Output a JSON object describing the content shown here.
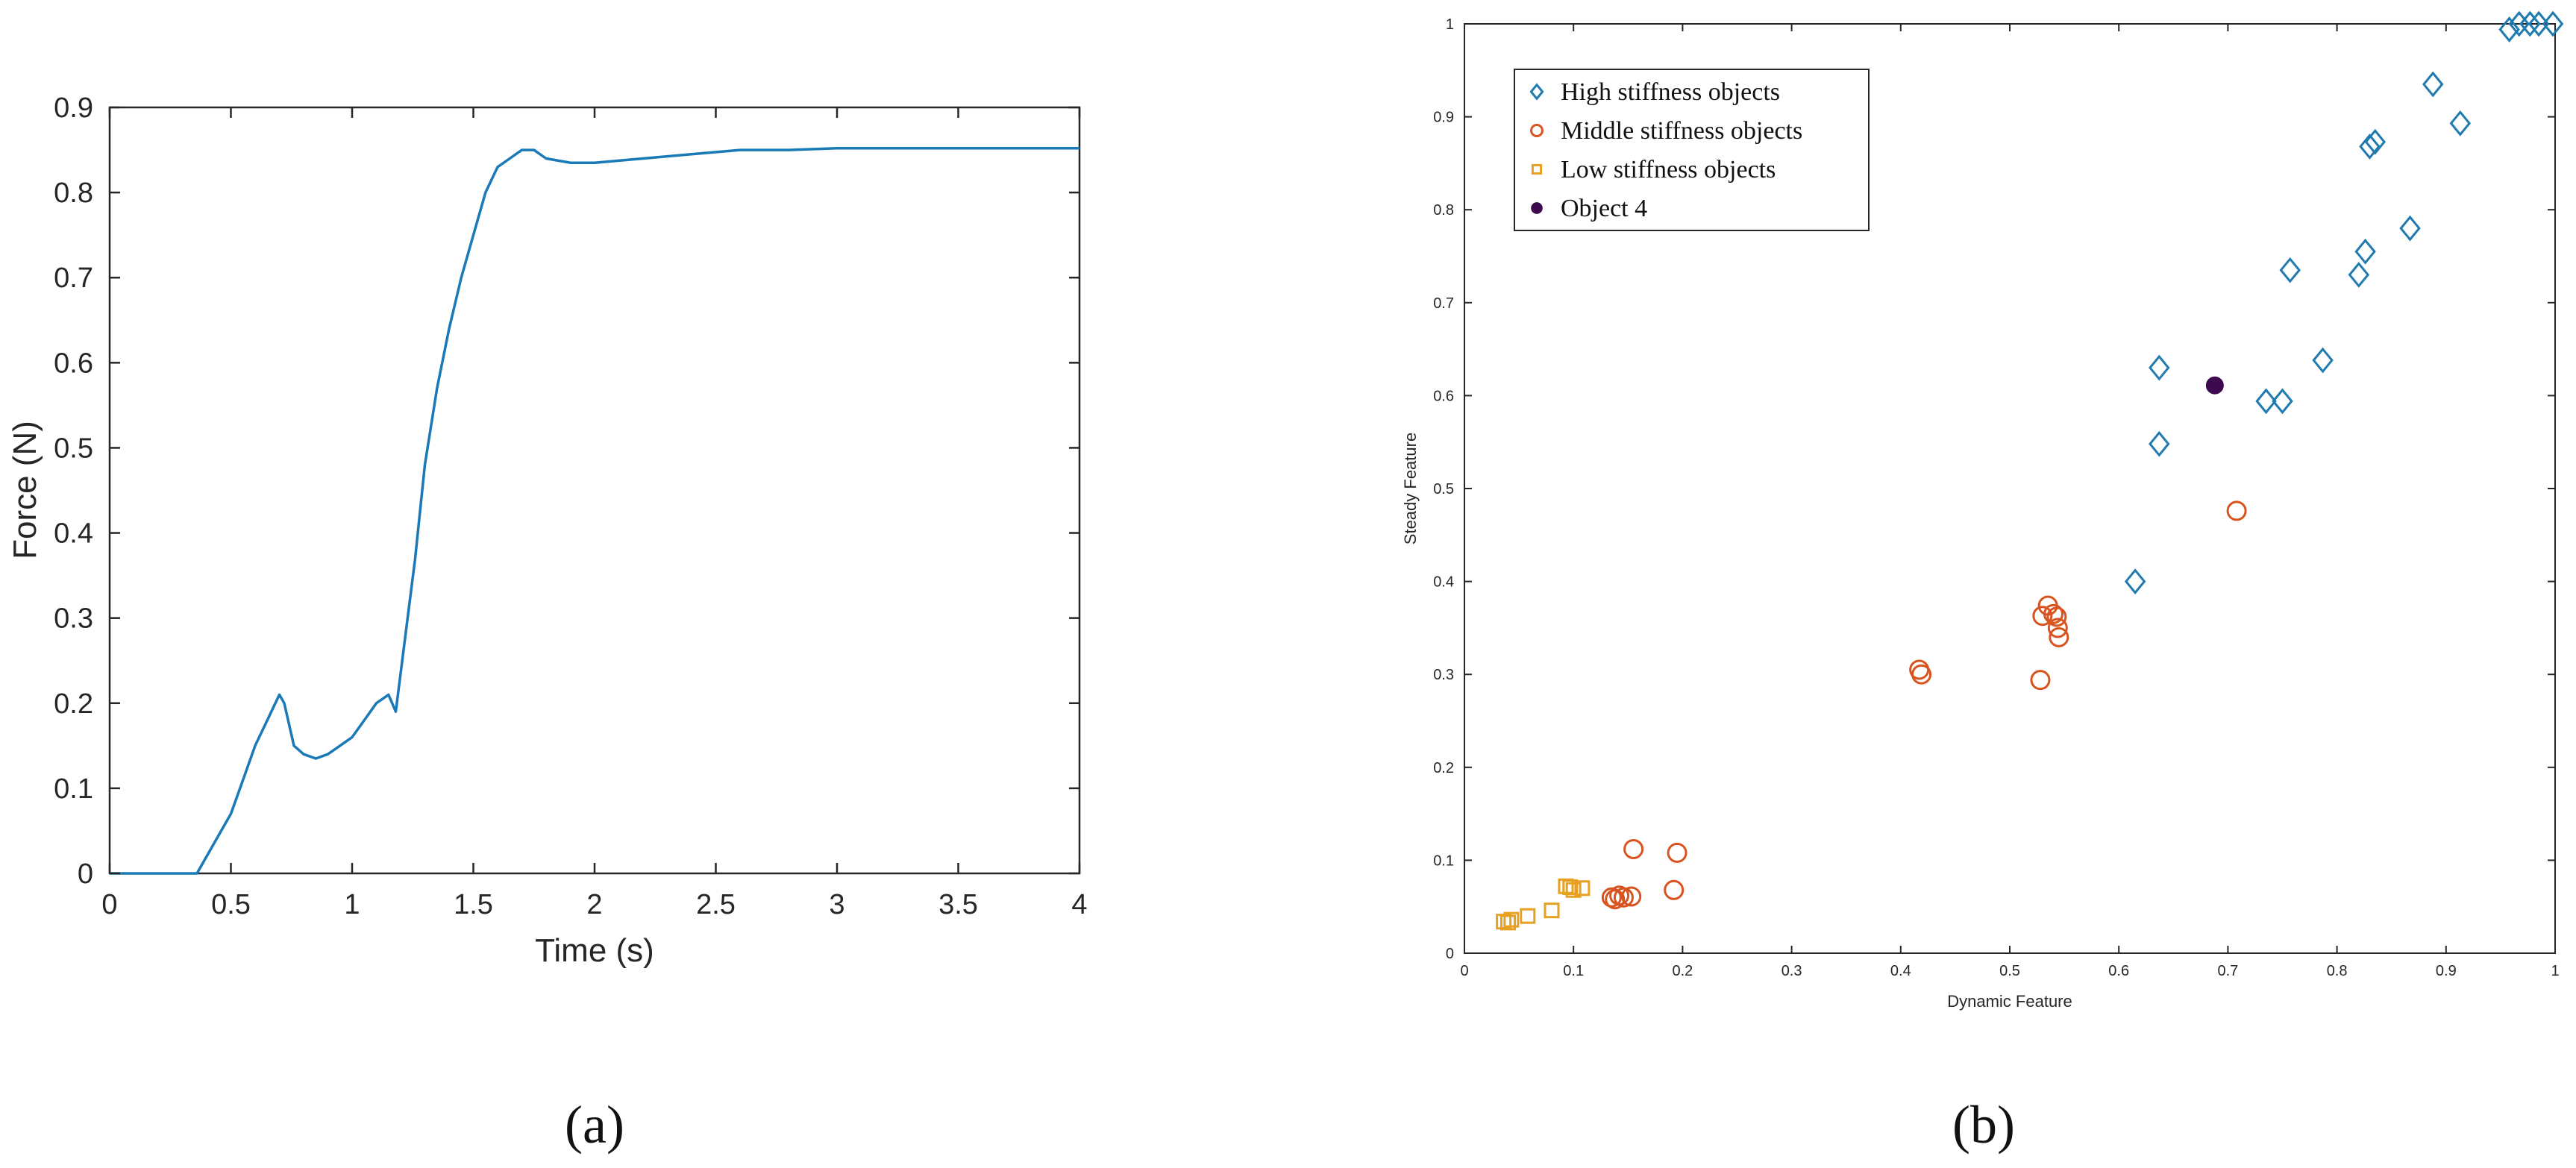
{
  "chart_data": [
    {
      "type": "line",
      "panel_label": "(a)",
      "title": "",
      "xlabel": "Time (s)",
      "ylabel": "Force (N)",
      "xlim": [
        0,
        4
      ],
      "ylim": [
        0,
        0.9
      ],
      "x_ticks": [
        0,
        0.5,
        1,
        1.5,
        2,
        2.5,
        3,
        3.5,
        4
      ],
      "x_tick_labels": [
        "0",
        "0.5",
        "1",
        "1.5",
        "2",
        "2.5",
        "3",
        "3.5",
        "4"
      ],
      "y_ticks": [
        0,
        0.1,
        0.2,
        0.3,
        0.4,
        0.5,
        0.6,
        0.7,
        0.8,
        0.9
      ],
      "y_tick_labels": [
        "0",
        "0.1",
        "0.2",
        "0.3",
        "0.4",
        "0.5",
        "0.6",
        "0.7",
        "0.8",
        "0.9"
      ],
      "grid": false,
      "color": "#1a7ab8",
      "series": [
        {
          "x": [
            0,
            0.36,
            0.38,
            0.42,
            0.46,
            0.5,
            0.55,
            0.6,
            0.65,
            0.7,
            0.72,
            0.76,
            0.8,
            0.85,
            0.9,
            0.95,
            1.0,
            1.05,
            1.1,
            1.15,
            1.18,
            1.22,
            1.26,
            1.3,
            1.35,
            1.4,
            1.45,
            1.5,
            1.55,
            1.6,
            1.65,
            1.7,
            1.75,
            1.8,
            1.9,
            2.0,
            2.2,
            2.4,
            2.6,
            2.8,
            3.0,
            3.5,
            4.0
          ],
          "y": [
            0,
            0,
            0.01,
            0.03,
            0.05,
            0.07,
            0.11,
            0.15,
            0.18,
            0.21,
            0.2,
            0.15,
            0.14,
            0.135,
            0.14,
            0.15,
            0.16,
            0.18,
            0.2,
            0.21,
            0.19,
            0.28,
            0.37,
            0.48,
            0.57,
            0.64,
            0.7,
            0.75,
            0.8,
            0.83,
            0.84,
            0.85,
            0.85,
            0.84,
            0.835,
            0.835,
            0.84,
            0.845,
            0.85,
            0.85,
            0.852,
            0.852,
            0.852
          ]
        }
      ]
    },
    {
      "type": "scatter",
      "panel_label": "(b)",
      "title": "",
      "xlabel": "Dynamic Feature",
      "ylabel": "Steady Feature",
      "xlim": [
        0,
        1
      ],
      "ylim": [
        0,
        1
      ],
      "x_ticks": [
        0,
        0.1,
        0.2,
        0.3,
        0.4,
        0.5,
        0.6,
        0.7,
        0.8,
        0.9,
        1
      ],
      "x_tick_labels": [
        "0",
        "0.1",
        "0.2",
        "0.3",
        "0.4",
        "0.5",
        "0.6",
        "0.7",
        "0.8",
        "0.9",
        "1"
      ],
      "y_ticks": [
        0,
        0.1,
        0.2,
        0.3,
        0.4,
        0.5,
        0.6,
        0.7,
        0.8,
        0.9,
        1
      ],
      "y_tick_labels": [
        "0",
        "0.1",
        "0.2",
        "0.3",
        "0.4",
        "0.5",
        "0.6",
        "0.7",
        "0.8",
        "0.9",
        "1"
      ],
      "grid": false,
      "legend_position": "top-left",
      "series": [
        {
          "name": "High stiffness objects",
          "marker": "diamond",
          "color": "#1f7ab0",
          "points": [
            [
              0.615,
              0.4
            ],
            [
              0.637,
              0.548
            ],
            [
              0.637,
              0.63
            ],
            [
              0.735,
              0.594
            ],
            [
              0.75,
              0.594
            ],
            [
              0.757,
              0.735
            ],
            [
              0.787,
              0.638
            ],
            [
              0.82,
              0.73
            ],
            [
              0.826,
              0.755
            ],
            [
              0.83,
              0.868
            ],
            [
              0.835,
              0.873
            ],
            [
              0.867,
              0.78
            ],
            [
              0.888,
              0.935
            ],
            [
              0.913,
              0.893
            ],
            [
              0.958,
              0.994
            ],
            [
              0.967,
              1.0
            ],
            [
              0.977,
              1.0
            ],
            [
              0.985,
              1.0
            ],
            [
              0.998,
              1.0
            ]
          ]
        },
        {
          "name": "Middle stiffness objects",
          "marker": "circle-open",
          "color": "#d9531e",
          "points": [
            [
              0.135,
              0.06
            ],
            [
              0.138,
              0.058
            ],
            [
              0.142,
              0.062
            ],
            [
              0.146,
              0.06
            ],
            [
              0.153,
              0.061
            ],
            [
              0.155,
              0.112
            ],
            [
              0.192,
              0.068
            ],
            [
              0.195,
              0.108
            ],
            [
              0.417,
              0.305
            ],
            [
              0.419,
              0.3
            ],
            [
              0.528,
              0.294
            ],
            [
              0.53,
              0.363
            ],
            [
              0.535,
              0.374
            ],
            [
              0.54,
              0.365
            ],
            [
              0.543,
              0.362
            ],
            [
              0.544,
              0.35
            ],
            [
              0.545,
              0.34
            ],
            [
              0.708,
              0.476
            ]
          ]
        },
        {
          "name": "Low stiffness objects",
          "marker": "square-open",
          "color": "#e8a020",
          "points": [
            [
              0.036,
              0.034
            ],
            [
              0.04,
              0.033
            ],
            [
              0.043,
              0.036
            ],
            [
              0.058,
              0.04
            ],
            [
              0.08,
              0.046
            ],
            [
              0.093,
              0.072
            ],
            [
              0.097,
              0.071
            ],
            [
              0.1,
              0.068
            ],
            [
              0.108,
              0.07
            ]
          ]
        },
        {
          "name": "Object 4",
          "marker": "circle-filled",
          "color": "#3d0a4f",
          "points": [
            [
              0.688,
              0.611
            ]
          ]
        }
      ]
    }
  ]
}
